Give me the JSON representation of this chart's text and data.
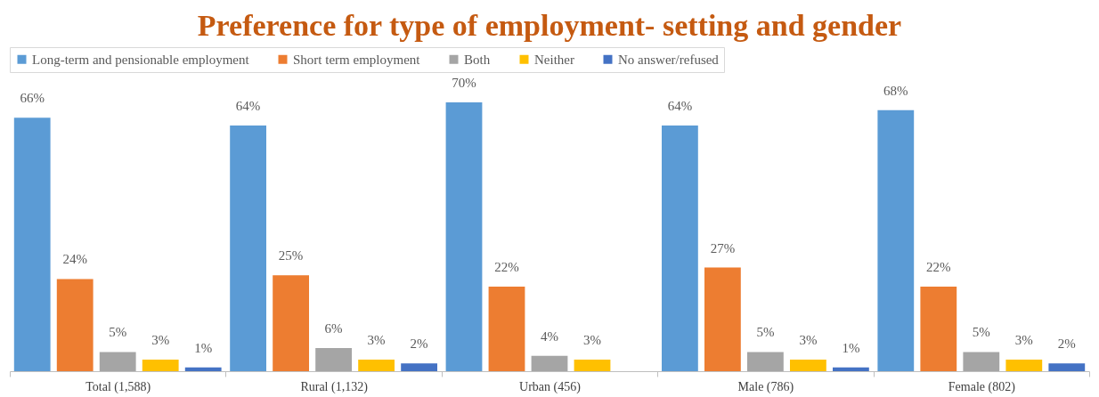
{
  "chart_data": {
    "type": "bar",
    "title": "Preference for type of employment- setting and gender",
    "categories": [
      "Total (1,588)",
      "Rural (1,132)",
      "Urban (456)",
      "Male (786)",
      "Female (802)"
    ],
    "series": [
      {
        "name": "Long-term and pensionable employment",
        "color": "#5b9bd5",
        "values": [
          66,
          64,
          70,
          64,
          68
        ],
        "value_labels": [
          "66%",
          "64%",
          "70%",
          "64%",
          "68%"
        ]
      },
      {
        "name": "Short term employment",
        "color": "#ed7d31",
        "values": [
          24,
          25,
          22,
          27,
          22
        ],
        "value_labels": [
          "24%",
          "25%",
          "22%",
          "27%",
          "22%"
        ]
      },
      {
        "name": "Both",
        "color": "#a5a5a5",
        "values": [
          5,
          6,
          4,
          5,
          5
        ],
        "value_labels": [
          "5%",
          "6%",
          "4%",
          "5%",
          "5%"
        ]
      },
      {
        "name": "Neither",
        "color": "#ffc000",
        "values": [
          3,
          3,
          3,
          3,
          3
        ],
        "value_labels": [
          "3%",
          "3%",
          "3%",
          "3%",
          "3%"
        ]
      },
      {
        "name": "No answer/refused",
        "color": "#4472c4",
        "values": [
          1,
          2,
          null,
          1,
          2
        ],
        "value_labels": [
          "1%",
          "2%",
          null,
          "1%",
          "2%"
        ]
      }
    ],
    "legend": "top",
    "grid": false
  }
}
